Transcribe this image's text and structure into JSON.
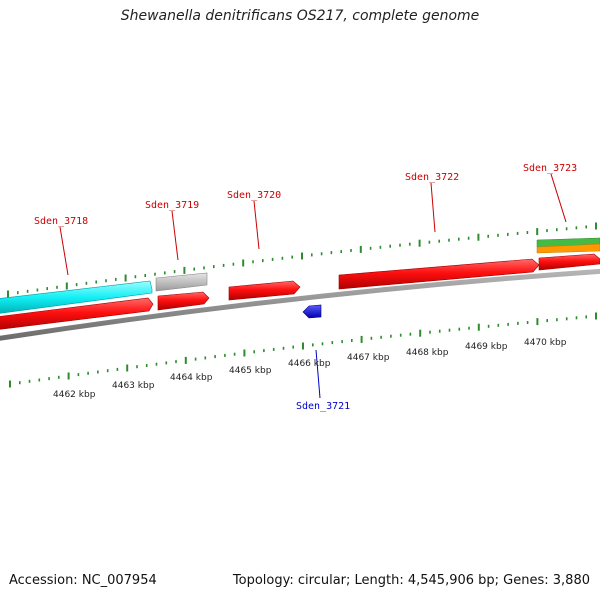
{
  "title": "Shewanella denitrificans OS217, complete genome",
  "footer": {
    "accession": "Accession: NC_007954",
    "summary": "Topology: circular; Length: 4,545,906 bp; Genes: 3,880"
  },
  "genes": [
    {
      "id": "Sden_3718",
      "color": "#cc0000"
    },
    {
      "id": "Sden_3719",
      "color": "#cc0000"
    },
    {
      "id": "Sden_3720",
      "color": "#cc0000"
    },
    {
      "id": "Sden_3721",
      "color": "#0000cc"
    },
    {
      "id": "Sden_3722",
      "color": "#cc0000"
    },
    {
      "id": "Sden_3723",
      "color": "#cc0000"
    }
  ],
  "kbp_labels": [
    "4462 kbp",
    "4463 kbp",
    "4464 kbp",
    "4465 kbp",
    "4466 kbp",
    "4467 kbp",
    "4468 kbp",
    "4469 kbp",
    "4470 kbp"
  ],
  "colors": {
    "backbone": "#8c8c8c",
    "cds_forward": "#ff0000",
    "cds_reverse": "#0000ff",
    "rrna": "#00e5e5",
    "pseudo": "#c0c0c0",
    "tick": "#2e8b2e",
    "feature_green": "#44bb44",
    "feature_orange": "#ff9900"
  }
}
